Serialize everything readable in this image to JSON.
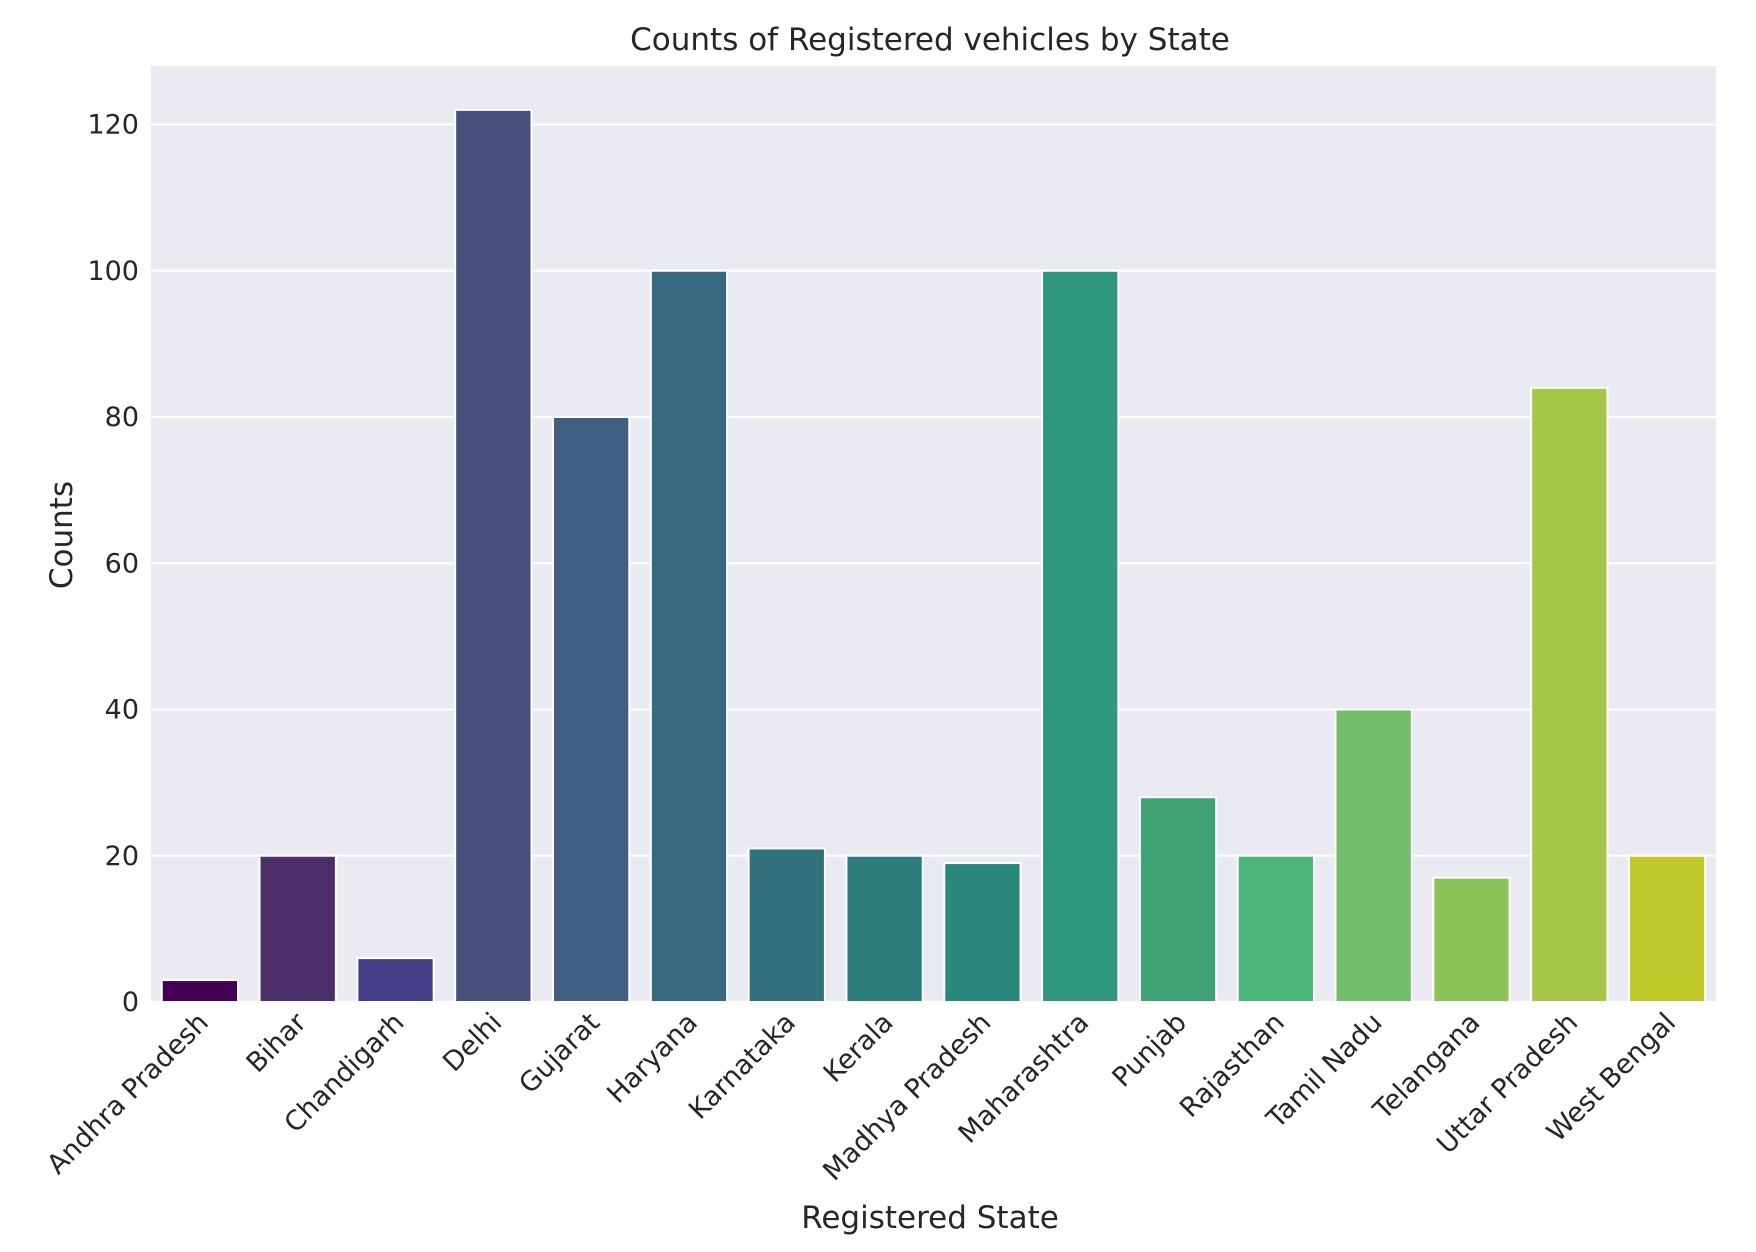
{
  "chart_data": {
    "type": "bar",
    "title": "Counts of Registered vehicles by State",
    "xlabel": "Registered State",
    "ylabel": "Counts",
    "ylim": [
      0,
      128
    ],
    "yticks": [
      0,
      20,
      40,
      60,
      80,
      100,
      120
    ],
    "grid": true,
    "categories": [
      "Andhra Pradesh",
      "Bihar",
      "Chandigarh",
      "Delhi",
      "Gujarat",
      "Haryana",
      "Karnataka",
      "Kerala",
      "Madhya Pradesh",
      "Maharashtra",
      "Punjab",
      "Rajasthan",
      "Tamil Nadu",
      "Telangana",
      "Uttar Pradesh",
      "West Bengal"
    ],
    "values": [
      3,
      20,
      6,
      122,
      80,
      100,
      21,
      20,
      19,
      100,
      28,
      20,
      40,
      17,
      84,
      20
    ],
    "colors": [
      "#440154",
      "#4a2f6b",
      "#433e85",
      "#46507a",
      "#415f82",
      "#386b80",
      "#32707b",
      "#2c7d7b",
      "#2a877c",
      "#31977c",
      "#3fa174",
      "#4db47a",
      "#73be6a",
      "#8cc358",
      "#a6c64a",
      "#c0c92c"
    ],
    "background": "#eaeaf2"
  }
}
